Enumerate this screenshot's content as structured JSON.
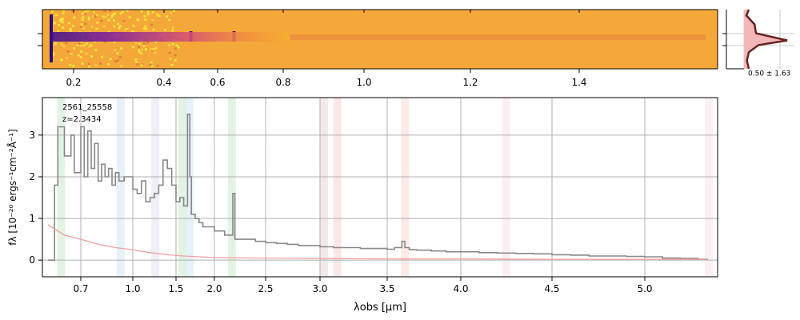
{
  "chart_data": [
    {
      "type": "heatmap",
      "panel": "2D spectrum",
      "x_tick_labels": [
        "0.2",
        "0.4",
        "0.6",
        "0.8",
        "1.0",
        "1.2",
        "1.4"
      ],
      "x_tick_values": [
        0.2,
        0.4,
        0.6,
        0.8,
        1.0,
        1.2,
        1.4
      ],
      "colormap": "plasma",
      "features": [
        0.5,
        0.65
      ]
    },
    {
      "type": "area",
      "panel": "spatial profile",
      "label": "0.50 ± 1.63",
      "profile_y": [
        0,
        0.1,
        0.25,
        0.4,
        0.52,
        0.6,
        0.72,
        0.86,
        1.0
      ],
      "profile_x": [
        0.1,
        0.05,
        0.22,
        0.25,
        0.9,
        0.3,
        0.1,
        0.06,
        0.1
      ]
    },
    {
      "type": "line",
      "panel": "1D spectrum",
      "title": "2561_25558",
      "subtitle": "z=2.3434",
      "xlabel": "λobs [μm]",
      "ylabel": "fλ [10⁻²⁰ ergs⁻¹cm⁻²Å⁻¹]",
      "xlim": [
        0.6,
        5.4
      ],
      "ylim": [
        -0.4,
        3.9
      ],
      "x_ticks": [
        {
          "v": 0.7,
          "label": "0.7"
        },
        {
          "v": 1.0,
          "label": "1.0"
        },
        {
          "v": 1.5,
          "label": "1.5"
        },
        {
          "v": 2.0,
          "label": "2.0"
        },
        {
          "v": 2.5,
          "label": "2.5"
        },
        {
          "v": 3.0,
          "label": "3.0"
        },
        {
          "v": 3.5,
          "label": "3.5"
        },
        {
          "v": 4.0,
          "label": "4.0"
        },
        {
          "v": 4.5,
          "label": "4.5"
        },
        {
          "v": 5.0,
          "label": "5.0"
        }
      ],
      "y_ticks": [
        0,
        1,
        2,
        3
      ],
      "grid": true,
      "emission_bands": [
        {
          "x": 0.64,
          "color": "#8fcf8f"
        },
        {
          "x": 0.93,
          "color": "#9fc8e8"
        },
        {
          "x": 1.26,
          "color": "#c8b8e8"
        },
        {
          "x": 1.58,
          "color": "#8fcf8f"
        },
        {
          "x": 1.68,
          "color": "#9fc8e8"
        },
        {
          "x": 2.17,
          "color": "#8fcf8f"
        },
        {
          "x": 3.03,
          "color": "#d4a8a8"
        },
        {
          "x": 3.13,
          "color": "#e8a0a0"
        },
        {
          "x": 3.62,
          "color": "#f0b0a0"
        },
        {
          "x": 4.25,
          "color": "#f4c0d0"
        },
        {
          "x": 5.36,
          "color": "#f4c0d0"
        }
      ],
      "series": [
        {
          "color": "#888888",
          "x": [
            0.6,
            0.62,
            0.63,
            0.65,
            0.67,
            0.68,
            0.7,
            0.72,
            0.74,
            0.76,
            0.78,
            0.8,
            0.82,
            0.84,
            0.86,
            0.88,
            0.9,
            0.92,
            0.95,
            1.0,
            1.05,
            1.1,
            1.15,
            1.2,
            1.25,
            1.3,
            1.35,
            1.4,
            1.45,
            1.5,
            1.55,
            1.6,
            1.65,
            1.68,
            1.7,
            1.75,
            1.8,
            1.85,
            1.9,
            1.95,
            2.0,
            2.05,
            2.1,
            2.15,
            2.18,
            2.2,
            2.25,
            2.3,
            2.4,
            2.5,
            2.6,
            2.7,
            2.8,
            2.9,
            3.0,
            3.1,
            3.2,
            3.3,
            3.4,
            3.5,
            3.55,
            3.6,
            3.62,
            3.65,
            3.7,
            3.8,
            3.9,
            4.0,
            4.1,
            4.2,
            4.3,
            4.4,
            4.5,
            4.6,
            4.7,
            4.8,
            4.9,
            5.0,
            5.1,
            5.2,
            5.3,
            5.35
          ],
          "y": [
            0,
            1.8,
            3.2,
            2.5,
            3.0,
            2.1,
            3.2,
            2.0,
            3.1,
            2.2,
            2.8,
            1.9,
            2.3,
            2.0,
            2.2,
            1.8,
            2.1,
            1.9,
            2.0,
            1.7,
            1.6,
            1.9,
            1.4,
            1.5,
            1.6,
            1.8,
            2.4,
            2.2,
            1.8,
            1.4,
            1.5,
            1.3,
            3.5,
            2.0,
            1.1,
            1.0,
            0.9,
            0.8,
            0.8,
            0.8,
            0.7,
            0.7,
            0.6,
            0.6,
            1.6,
            0.5,
            0.5,
            0.5,
            0.45,
            0.42,
            0.4,
            0.38,
            0.35,
            0.35,
            0.32,
            0.3,
            0.3,
            0.28,
            0.28,
            0.26,
            0.3,
            0.45,
            0.3,
            0.25,
            0.24,
            0.22,
            0.2,
            0.2,
            0.18,
            0.17,
            0.16,
            0.15,
            0.13,
            0.12,
            0.1,
            0.1,
            0.09,
            0.08,
            0.05,
            0.04,
            0.02,
            0
          ]
        },
        {
          "color": "#f4a0a0",
          "x": [
            0.6,
            0.62,
            0.65,
            0.7,
            0.8,
            0.9,
            1.0,
            1.2,
            1.4,
            1.6,
            1.8,
            2.0,
            2.5,
            3.0,
            3.5,
            4.0,
            4.5,
            5.0,
            5.35
          ],
          "y": [
            0.85,
            0.75,
            0.6,
            0.5,
            0.38,
            0.3,
            0.25,
            0.18,
            0.13,
            0.1,
            0.08,
            0.06,
            0.05,
            0.04,
            0.03,
            0.03,
            0.02,
            0.02,
            0.02
          ]
        }
      ]
    }
  ]
}
